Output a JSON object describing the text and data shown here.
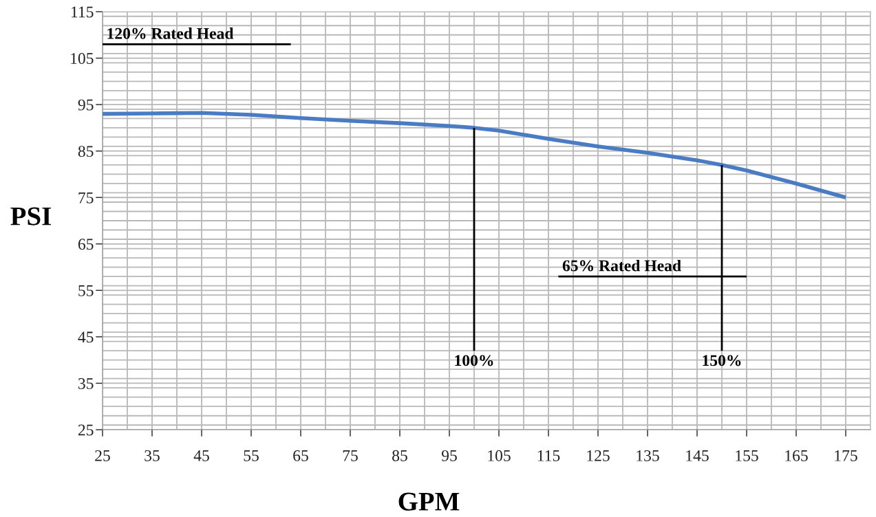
{
  "chart_data": {
    "type": "line",
    "xlabel": "GPM",
    "ylabel": "PSI",
    "x": [
      25,
      35,
      45,
      55,
      65,
      75,
      85,
      95,
      100,
      105,
      115,
      125,
      135,
      145,
      150,
      155,
      165,
      175
    ],
    "series": [
      {
        "color": "#4a7cc4",
        "values": [
          93,
          93.1,
          93.2,
          92.8,
          92.1,
          91.5,
          91,
          90.4,
          90,
          89.4,
          87.6,
          86,
          84.6,
          83,
          82,
          80.8,
          78,
          75
        ]
      },
      {
        "color": "#000000",
        "x": [
          25,
          63
        ],
        "values": [
          108,
          108
        ]
      },
      {
        "color": "#000000",
        "x": [
          117,
          155
        ],
        "values": [
          58,
          58
        ]
      },
      {
        "color": "#000000",
        "x": [
          100,
          100
        ],
        "values": [
          42,
          90
        ]
      },
      {
        "color": "#000000",
        "x": [
          150,
          150
        ],
        "values": [
          42,
          82
        ]
      }
    ],
    "annotations": [
      {
        "text": "120% Rated Head",
        "x": 25,
        "y": 108
      },
      {
        "text": "65% Rated Head",
        "x": 117,
        "y": 58
      },
      {
        "text": "100%",
        "x": 100,
        "y": 42
      },
      {
        "text": "150%",
        "x": 150,
        "y": 42
      }
    ],
    "xlim": [
      25,
      180
    ],
    "xticks": [
      25,
      35,
      45,
      55,
      65,
      75,
      85,
      95,
      105,
      115,
      125,
      135,
      145,
      155,
      165,
      175
    ],
    "ylim": [
      25,
      115
    ],
    "yticks": [
      25,
      35,
      45,
      55,
      65,
      75,
      85,
      95,
      105,
      115
    ],
    "grid": true,
    "marker": "none",
    "line_style": "solid"
  }
}
